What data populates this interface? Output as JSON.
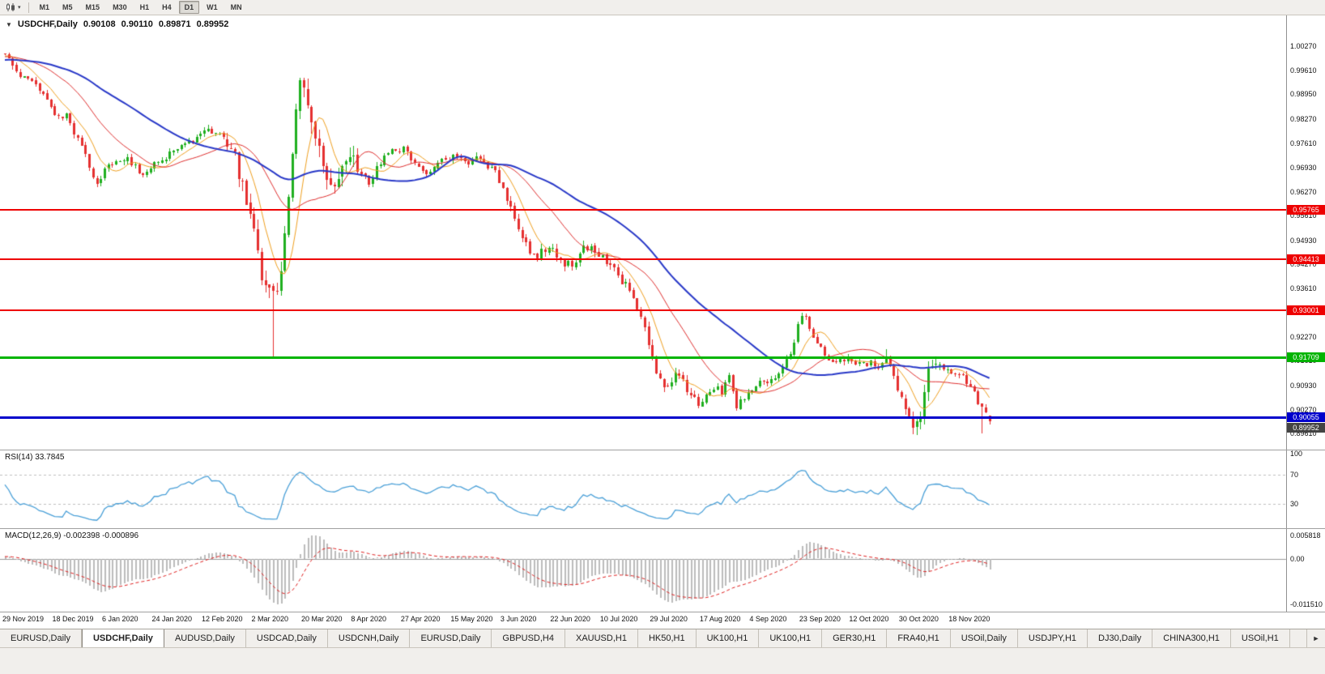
{
  "toolbar": {
    "dropdown_arrow": "▾",
    "timeframes": [
      "M1",
      "M5",
      "M15",
      "M30",
      "H1",
      "H4",
      "D1",
      "W1",
      "MN"
    ],
    "active_timeframe": "D1"
  },
  "chart": {
    "collapse_arrow": "▼",
    "symbol_title": "USDCHF,Daily",
    "open": "0.90108",
    "high": "0.90110",
    "low": "0.89871",
    "close": "0.89952"
  },
  "price_axis_ticks": [
    "1.00270",
    "0.99610",
    "0.98950",
    "0.98270",
    "0.97610",
    "0.96930",
    "0.96270",
    "0.95610",
    "0.94930",
    "0.94270",
    "0.93610",
    "0.92930",
    "0.92270",
    "0.91610",
    "0.90930",
    "0.90270",
    "0.89610"
  ],
  "hlines": [
    {
      "name": "resistance-1",
      "price": 0.95765,
      "label": "0.95765",
      "color": "#EE0000",
      "thickness": 2
    },
    {
      "name": "resistance-2",
      "price": 0.94413,
      "label": "0.94413",
      "color": "#EE0000",
      "thickness": 2
    },
    {
      "name": "resistance-3",
      "price": 0.93001,
      "label": "0.93001",
      "color": "#EE0000",
      "thickness": 2
    },
    {
      "name": "support-green",
      "price": 0.91709,
      "label": "0.91709",
      "color": "#00B400",
      "thickness": 3
    },
    {
      "name": "support-blue",
      "price": 0.90055,
      "label": "0.90055",
      "color": "#0000CC",
      "thickness": 3
    }
  ],
  "bid_price_tag": {
    "label": "0.89952",
    "color": "#444444"
  },
  "rsi_panel": {
    "label": "RSI(14) 33.7845",
    "axis_labels": [
      {
        "value": 100,
        "label": "100"
      },
      {
        "value": 70,
        "label": "70"
      },
      {
        "value": 30,
        "label": "30"
      }
    ],
    "dashed_levels": [
      70,
      30
    ],
    "line_color": "#4AA0D8"
  },
  "macd_panel": {
    "label": "MACD(12,26,9) -0.002398 -0.000896",
    "axis_labels": [
      {
        "value": 0.005818,
        "label": "0.005818"
      },
      {
        "value": 0,
        "label": "0.00"
      },
      {
        "value": -0.01151,
        "label": "-0.011510"
      }
    ],
    "histogram_color": "#BBBBBB",
    "signal_color": "#E02020"
  },
  "date_axis": [
    "29 Nov 2019",
    "18 Dec 2019",
    "6 Jan 2020",
    "24 Jan 2020",
    "12 Feb 2020",
    "2 Mar 2020",
    "20 Mar 2020",
    "8 Apr 2020",
    "27 Apr 2020",
    "15 May 2020",
    "3 Jun 2020",
    "22 Jun 2020",
    "10 Jul 2020",
    "29 Jul 2020",
    "17 Aug 2020",
    "4 Sep 2020",
    "23 Sep 2020",
    "12 Oct 2020",
    "30 Oct 2020",
    "18 Nov 2020"
  ],
  "tabs": [
    "EURUSD,Daily",
    "USDCHF,Daily",
    "AUDUSD,Daily",
    "USDCAD,Daily",
    "USDCNH,Daily",
    "EURUSD,Daily",
    "GBPUSD,H4",
    "XAUUSD,H1",
    "HK50,H1",
    "UK100,H1",
    "UK100,H1",
    "GER30,H1",
    "FRA40,H1",
    "USOil,Daily",
    "USDJPY,H1",
    "DJ30,Daily",
    "CHINA300,H1",
    "USOil,H1"
  ],
  "active_tab_index": 1,
  "tab_scroll_arrow": "►",
  "colors": {
    "bull": "#1FAF1F",
    "bear": "#E53030"
  },
  "chart_data": {
    "type": "candlestick",
    "symbol": "USDCHF",
    "timeframe": "Daily",
    "price_axis_range": [
      0.893,
      1.007
    ],
    "num_candles": 258,
    "pre_history_price": 0.997,
    "base_volatility": 0.0019,
    "volatility_zones": [
      {
        "from": 58,
        "to": 92,
        "amp": 0.0058
      },
      {
        "from": 128,
        "to": 180,
        "amp": 0.0026
      },
      {
        "from": 230,
        "to": 244,
        "amp": 0.004
      }
    ],
    "close_anchors": [
      [
        0,
        1.0005
      ],
      [
        2,
        0.9968
      ],
      [
        4,
        0.9935
      ],
      [
        6,
        0.994
      ],
      [
        9,
        0.9902
      ],
      [
        11,
        0.9882
      ],
      [
        13,
        0.9845
      ],
      [
        16,
        0.9835
      ],
      [
        18,
        0.9792
      ],
      [
        20,
        0.975
      ],
      [
        22,
        0.97
      ],
      [
        24,
        0.9645
      ],
      [
        26,
        0.9692
      ],
      [
        29,
        0.9706
      ],
      [
        32,
        0.9722
      ],
      [
        35,
        0.9682
      ],
      [
        37,
        0.9672
      ],
      [
        39,
        0.97
      ],
      [
        42,
        0.9722
      ],
      [
        45,
        0.9745
      ],
      [
        48,
        0.9762
      ],
      [
        51,
        0.978
      ],
      [
        53,
        0.98
      ],
      [
        55,
        0.979
      ],
      [
        58,
        0.9775
      ],
      [
        60,
        0.972
      ],
      [
        62,
        0.9652
      ],
      [
        64,
        0.956
      ],
      [
        66,
        0.944
      ],
      [
        68,
        0.936
      ],
      [
        70,
        0.9335
      ],
      [
        71,
        0.9342
      ],
      [
        72,
        0.942
      ],
      [
        74,
        0.963
      ],
      [
        75,
        0.974
      ],
      [
        76,
        0.985
      ],
      [
        77,
        0.9915
      ],
      [
        79,
        0.9862
      ],
      [
        81,
        0.98
      ],
      [
        83,
        0.9705
      ],
      [
        85,
        0.962
      ],
      [
        87,
        0.9662
      ],
      [
        89,
        0.9712
      ],
      [
        91,
        0.9722
      ],
      [
        93,
        0.9682
      ],
      [
        95,
        0.9655
      ],
      [
        97,
        0.969
      ],
      [
        99,
        0.9722
      ],
      [
        101,
        0.9748
      ],
      [
        104,
        0.9742
      ],
      [
        106,
        0.9715
      ],
      [
        108,
        0.9695
      ],
      [
        110,
        0.968
      ],
      [
        113,
        0.9702
      ],
      [
        115,
        0.9715
      ],
      [
        117,
        0.9722
      ],
      [
        120,
        0.9706
      ],
      [
        123,
        0.9716
      ],
      [
        126,
        0.97
      ],
      [
        128,
        0.968
      ],
      [
        130,
        0.9625
      ],
      [
        132,
        0.958
      ],
      [
        134,
        0.9535
      ],
      [
        136,
        0.9482
      ],
      [
        138,
        0.9445
      ],
      [
        140,
        0.9465
      ],
      [
        142,
        0.9478
      ],
      [
        144,
        0.9455
      ],
      [
        146,
        0.9432
      ],
      [
        148,
        0.942
      ],
      [
        150,
        0.9465
      ],
      [
        152,
        0.9478
      ],
      [
        154,
        0.9452
      ],
      [
        156,
        0.944
      ],
      [
        158,
        0.9422
      ],
      [
        160,
        0.9392
      ],
      [
        162,
        0.9372
      ],
      [
        164,
        0.933
      ],
      [
        166,
        0.9282
      ],
      [
        168,
        0.9212
      ],
      [
        169,
        0.9162
      ],
      [
        171,
        0.9102
      ],
      [
        173,
        0.908
      ],
      [
        175,
        0.9116
      ],
      [
        177,
        0.91
      ],
      [
        179,
        0.9062
      ],
      [
        181,
        0.9042
      ],
      [
        183,
        0.9062
      ],
      [
        185,
        0.9092
      ],
      [
        187,
        0.9076
      ],
      [
        189,
        0.9112
      ],
      [
        191,
        0.9036
      ],
      [
        193,
        0.9062
      ],
      [
        195,
        0.9082
      ],
      [
        197,
        0.9106
      ],
      [
        199,
        0.9092
      ],
      [
        201,
        0.9112
      ],
      [
        203,
        0.9152
      ],
      [
        205,
        0.9186
      ],
      [
        207,
        0.9256
      ],
      [
        208,
        0.929
      ],
      [
        210,
        0.9256
      ],
      [
        212,
        0.9212
      ],
      [
        214,
        0.9172
      ],
      [
        216,
        0.9156
      ],
      [
        218,
        0.9172
      ],
      [
        220,
        0.9162
      ],
      [
        222,
        0.9152
      ],
      [
        224,
        0.9162
      ],
      [
        226,
        0.9152
      ],
      [
        228,
        0.9142
      ],
      [
        230,
        0.9156
      ],
      [
        232,
        0.914
      ],
      [
        233,
        0.9082
      ],
      [
        235,
        0.9022
      ],
      [
        237,
        0.8992
      ],
      [
        239,
        0.9012
      ],
      [
        240,
        0.9082
      ],
      [
        241,
        0.9132
      ],
      [
        242,
        0.9166
      ],
      [
        244,
        0.9152
      ],
      [
        246,
        0.9136
      ],
      [
        248,
        0.9126
      ],
      [
        250,
        0.9116
      ],
      [
        252,
        0.9092
      ],
      [
        254,
        0.9052
      ],
      [
        255,
        0.9032
      ],
      [
        256,
        0.9012
      ],
      [
        257,
        0.8995
      ]
    ],
    "wick_overrides": [
      {
        "i": 70,
        "low": 0.9172
      },
      {
        "i": 77,
        "high": 0.9932
      },
      {
        "i": 237,
        "low": 0.8976
      },
      {
        "i": 255,
        "low": 0.8963
      }
    ],
    "last_ohlc": {
      "open": 0.90108,
      "high": 0.9011,
      "low": 0.89871,
      "close": 0.89952
    },
    "moving_averages": [
      {
        "period": 8,
        "color": "#F0A020",
        "width": 1
      },
      {
        "period": 21,
        "color": "#E03030",
        "width": 1
      },
      {
        "period": 45,
        "color": "#2838C8",
        "width": 2
      }
    ],
    "horizontal_levels": [
      0.95765,
      0.94413,
      0.93001,
      0.91709,
      0.90055
    ],
    "rsi": {
      "period": 14,
      "last_value": 33.7845
    },
    "macd": {
      "fast": 12,
      "slow": 26,
      "signal": 9,
      "last_macd": -0.002398,
      "last_signal": -0.000896
    }
  }
}
